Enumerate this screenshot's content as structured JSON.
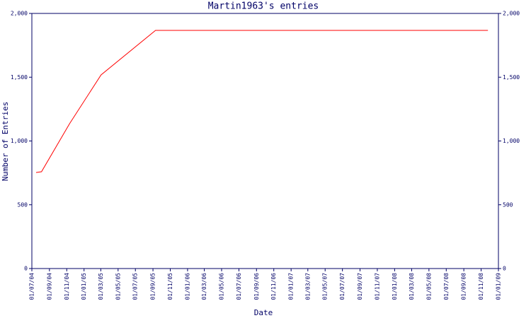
{
  "chart_data": {
    "type": "line",
    "title": "Martin1963's entries",
    "x_label": "Date",
    "y_label": "Number of Entries",
    "x": [
      "2004-07-16",
      "2004-08-04",
      "2004-11-11",
      "2005-03-02",
      "2005-09-10",
      "2008-11-25"
    ],
    "series": [
      {
        "name": "Martin1963",
        "color": "#ff0000",
        "values": [
          753,
          759,
          1136,
          1518,
          1867,
          1867
        ]
      }
    ],
    "xlim": [
      "2004-07-01",
      "2009-01-01"
    ],
    "xticks": [
      {
        "value": "2004-07-01",
        "label": "01/07/04"
      },
      {
        "value": "2004-09-01",
        "label": "01/09/04"
      },
      {
        "value": "2004-11-01",
        "label": "01/11/04"
      },
      {
        "value": "2005-01-01",
        "label": "01/01/05"
      },
      {
        "value": "2005-03-01",
        "label": "01/03/05"
      },
      {
        "value": "2005-05-01",
        "label": "01/05/05"
      },
      {
        "value": "2005-07-01",
        "label": "01/07/05"
      },
      {
        "value": "2005-09-01",
        "label": "01/09/05"
      },
      {
        "value": "2005-11-01",
        "label": "01/11/05"
      },
      {
        "value": "2006-01-01",
        "label": "01/01/06"
      },
      {
        "value": "2006-03-01",
        "label": "01/03/06"
      },
      {
        "value": "2006-05-01",
        "label": "01/05/06"
      },
      {
        "value": "2006-07-01",
        "label": "01/07/06"
      },
      {
        "value": "2006-09-01",
        "label": "01/09/06"
      },
      {
        "value": "2006-11-01",
        "label": "01/11/06"
      },
      {
        "value": "2007-01-01",
        "label": "01/01/07"
      },
      {
        "value": "2007-03-01",
        "label": "01/03/07"
      },
      {
        "value": "2007-05-01",
        "label": "01/05/07"
      },
      {
        "value": "2007-07-01",
        "label": "01/07/07"
      },
      {
        "value": "2007-09-01",
        "label": "01/09/07"
      },
      {
        "value": "2007-11-01",
        "label": "01/11/07"
      },
      {
        "value": "2008-01-01",
        "label": "01/01/08"
      },
      {
        "value": "2008-03-01",
        "label": "01/03/08"
      },
      {
        "value": "2008-05-01",
        "label": "01/05/08"
      },
      {
        "value": "2008-07-01",
        "label": "01/07/08"
      },
      {
        "value": "2008-09-01",
        "label": "01/09/08"
      },
      {
        "value": "2008-11-01",
        "label": "01/11/08"
      },
      {
        "value": "2009-01-01",
        "label": "01/01/09"
      }
    ],
    "ylim": [
      0,
      2000
    ],
    "yticks": [
      0,
      500,
      {
        "value": 1000,
        "label": "1,000"
      },
      {
        "value": 1500,
        "label": "1,500"
      },
      {
        "value": 2000,
        "label": "2,000"
      }
    ],
    "grid": false
  }
}
